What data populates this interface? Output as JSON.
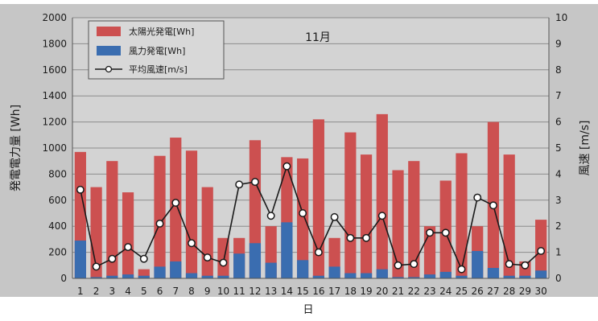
{
  "chart_data": {
    "type": "bar",
    "title": "11月",
    "xlabel": "日",
    "ylabel": "発電電力量 [Wh]",
    "y2label": "風速 [m/s]",
    "categories": [
      "1",
      "2",
      "3",
      "4",
      "5",
      "6",
      "7",
      "8",
      "9",
      "10",
      "11",
      "12",
      "13",
      "14",
      "15",
      "16",
      "17",
      "18",
      "19",
      "20",
      "21",
      "22",
      "23",
      "24",
      "25",
      "26",
      "27",
      "28",
      "29",
      "30"
    ],
    "ylim": [
      0,
      2000
    ],
    "yticks": [
      "0",
      "200",
      "400",
      "600",
      "800",
      "1000",
      "1200",
      "1400",
      "1600",
      "1800",
      "2000"
    ],
    "y2lim": [
      0,
      10
    ],
    "y2ticks": [
      "0",
      "1",
      "2",
      "3",
      "4",
      "5",
      "6",
      "7",
      "8",
      "9",
      "10"
    ],
    "grid": true,
    "legend_position": "top-left",
    "series": [
      {
        "name": "太陽光発電[Wh]",
        "kind": "bar",
        "stacked_total": true,
        "color": "#cc5050",
        "values": [
          970,
          700,
          900,
          660,
          70,
          940,
          1080,
          980,
          700,
          310,
          310,
          1060,
          400,
          930,
          920,
          1220,
          310,
          1120,
          950,
          1260,
          830,
          900,
          400,
          750,
          960,
          400,
          1200,
          950,
          130,
          450
        ]
      },
      {
        "name": "風力発電[Wh]",
        "kind": "bar",
        "color": "#3a6db0",
        "values": [
          290,
          10,
          20,
          30,
          20,
          90,
          130,
          40,
          20,
          20,
          190,
          270,
          120,
          430,
          140,
          20,
          90,
          40,
          40,
          70,
          10,
          10,
          30,
          50,
          20,
          210,
          80,
          20,
          20,
          60
        ]
      },
      {
        "name": "平均風速[m/s]",
        "kind": "line",
        "axis": "right",
        "color": "#1a1a1a",
        "values": [
          3.4,
          0.45,
          0.75,
          1.2,
          0.75,
          2.1,
          2.9,
          1.35,
          0.8,
          0.6,
          3.6,
          3.7,
          2.4,
          4.3,
          2.5,
          1.0,
          2.35,
          1.55,
          1.55,
          2.4,
          0.5,
          0.55,
          1.75,
          1.75,
          0.35,
          3.1,
          2.8,
          0.55,
          0.5,
          1.05
        ]
      }
    ]
  }
}
